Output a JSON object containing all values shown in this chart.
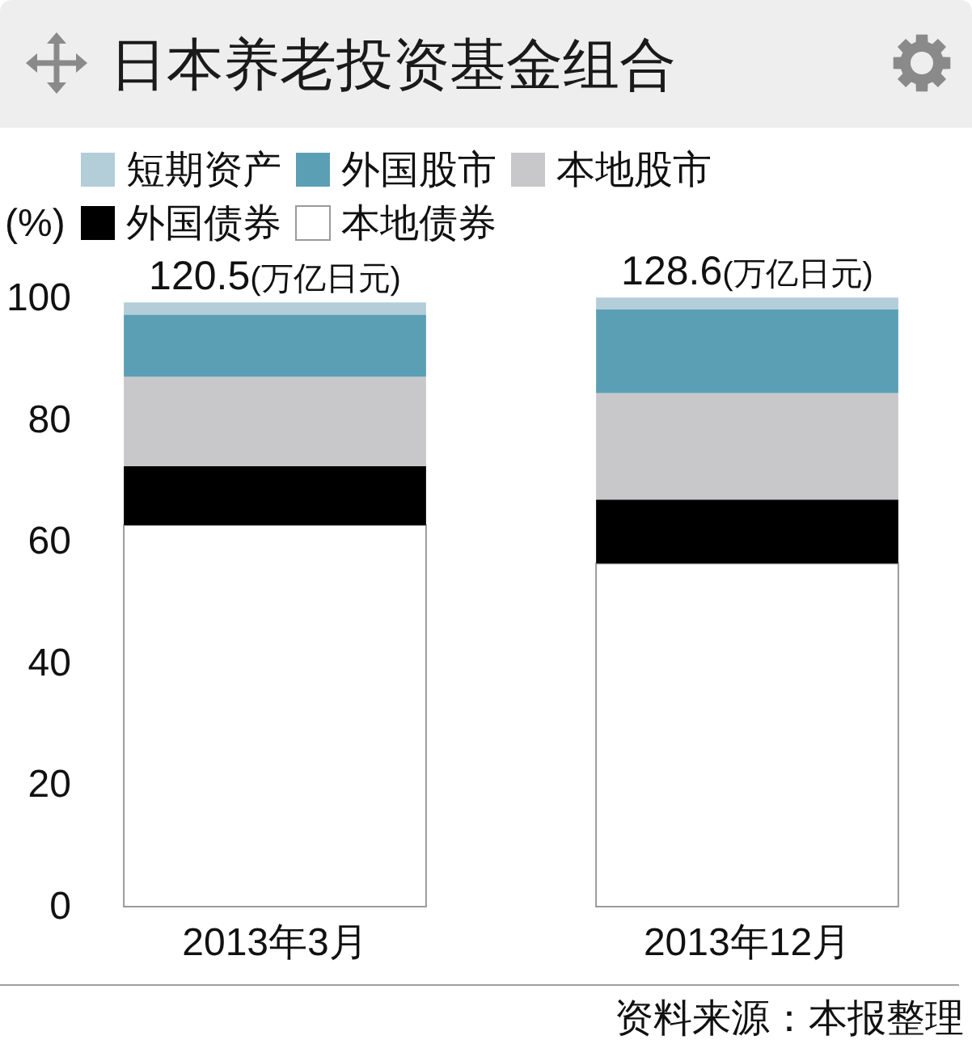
{
  "chart_data": {
    "type": "bar",
    "title": "日本养老投资基金组合",
    "ylabel": "(%)",
    "categories": [
      "2013年3月",
      "2013年12月"
    ],
    "stacked": true,
    "series": [
      {
        "name": "本地债券",
        "color": "#ffffff",
        "values": [
          62.7,
          56.4
        ]
      },
      {
        "name": "外国债券",
        "color": "#000000",
        "values": [
          9.7,
          10.5
        ]
      },
      {
        "name": "本地股市",
        "color": "#c8c8ca",
        "values": [
          14.7,
          17.5
        ]
      },
      {
        "name": "外国股市",
        "color": "#5b9fb5",
        "values": [
          10.2,
          13.8
        ]
      },
      {
        "name": "短期资产",
        "color": "#b3cdd9",
        "values": [
          2.0,
          1.9
        ]
      }
    ],
    "ylim": [
      0,
      100
    ],
    "yticks": [
      0,
      20,
      40,
      60,
      80,
      100
    ],
    "legend": "top",
    "annotations": [
      {
        "text": "120.5(万亿日元)",
        "x": "2013年3月",
        "y": 99.3
      },
      {
        "text": "128.6(万亿日元)",
        "x": "2013年12月",
        "y": 100.1
      },
      "资料来源：本报整理"
    ]
  }
}
